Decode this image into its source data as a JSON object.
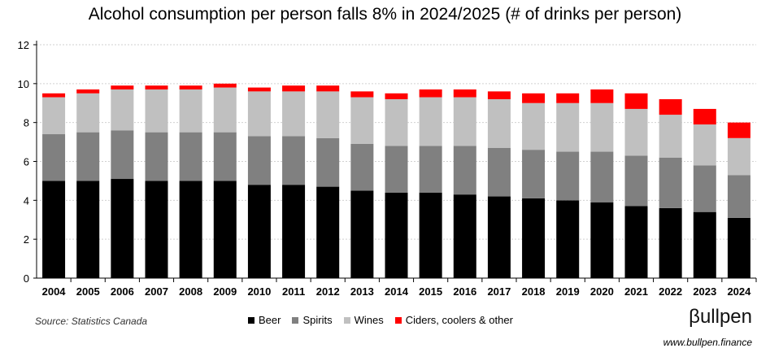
{
  "chart_data": {
    "type": "bar",
    "stacked": true,
    "title": "Alcohol consumption per person falls 8% in 2024/2025 (# of drinks per person)",
    "categories": [
      "2004",
      "2005",
      "2006",
      "2007",
      "2008",
      "2009",
      "2010",
      "2011",
      "2012",
      "2013",
      "2014",
      "2015",
      "2016",
      "2017",
      "2018",
      "2019",
      "2020",
      "2021",
      "2022",
      "2023",
      "2024"
    ],
    "series": [
      {
        "name": "Beer",
        "color": "#000000",
        "values": [
          5.0,
          5.0,
          5.1,
          5.0,
          5.0,
          5.0,
          4.8,
          4.8,
          4.7,
          4.5,
          4.4,
          4.4,
          4.3,
          4.2,
          4.1,
          4.0,
          3.9,
          3.7,
          3.6,
          3.4,
          3.1
        ]
      },
      {
        "name": "Spirits",
        "color": "#808080",
        "values": [
          2.4,
          2.5,
          2.5,
          2.5,
          2.5,
          2.5,
          2.5,
          2.5,
          2.5,
          2.4,
          2.4,
          2.4,
          2.5,
          2.5,
          2.5,
          2.5,
          2.6,
          2.6,
          2.6,
          2.4,
          2.2
        ]
      },
      {
        "name": "Wines",
        "color": "#c0c0c0",
        "values": [
          1.9,
          2.0,
          2.1,
          2.2,
          2.2,
          2.3,
          2.3,
          2.3,
          2.4,
          2.4,
          2.4,
          2.5,
          2.5,
          2.5,
          2.4,
          2.5,
          2.5,
          2.4,
          2.2,
          2.1,
          1.9
        ]
      },
      {
        "name": "Ciders, coolers & other",
        "color": "#ff0000",
        "values": [
          0.2,
          0.2,
          0.2,
          0.2,
          0.2,
          0.2,
          0.2,
          0.3,
          0.3,
          0.3,
          0.3,
          0.4,
          0.4,
          0.4,
          0.5,
          0.5,
          0.7,
          0.8,
          0.8,
          0.8,
          0.8
        ]
      }
    ],
    "ylim": [
      0,
      12
    ],
    "yticks": [
      0,
      2,
      4,
      6,
      8,
      10,
      12
    ],
    "grid": true,
    "legend_position": "bottom"
  },
  "footer": {
    "source": "Source: Statistics Canada",
    "logo": "βullpen",
    "url": "www.bullpen.finance"
  }
}
